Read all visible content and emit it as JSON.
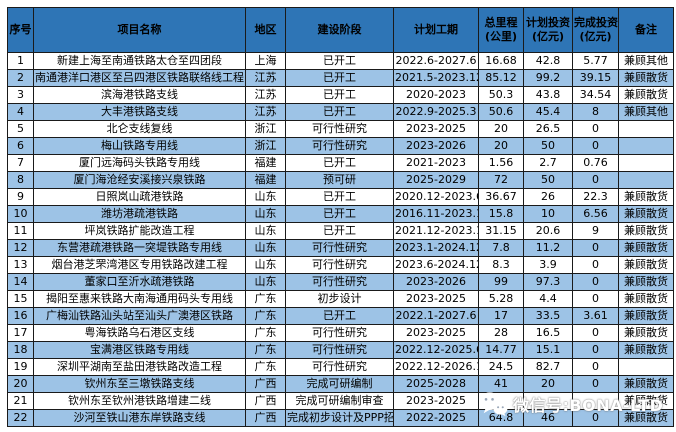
{
  "table": {
    "columns": [
      {
        "label": "序号"
      },
      {
        "label": "项目名称"
      },
      {
        "label": "地区"
      },
      {
        "label": "建设阶段"
      },
      {
        "label": "计划工期"
      },
      {
        "label": "总里程",
        "label2": "(公里)"
      },
      {
        "label": "计划投资",
        "label2": "(亿元)"
      },
      {
        "label": "完成投资",
        "label2": "(亿元)"
      },
      {
        "label": "备注"
      }
    ],
    "rows": [
      [
        "1",
        "新建上海至南通铁路太仓至四团段",
        "上海",
        "已开工",
        "2022.6-2027.6",
        "16.68",
        "42.8",
        "5.77",
        "兼顾其他"
      ],
      [
        "2",
        "南通港洋口港区至吕四港区铁路联络线工程",
        "江苏",
        "已开工",
        "2021.5-2023.12",
        "85.12",
        "99.2",
        "39.15",
        "兼顾散货"
      ],
      [
        "3",
        "滨海港铁路支线",
        "江苏",
        "已开工",
        "2020-2023",
        "50.3",
        "43.8",
        "34.54",
        "兼顾散货"
      ],
      [
        "4",
        "大丰港铁路支线",
        "江苏",
        "已开工",
        "2022.9-2025.3",
        "50.6",
        "45.4",
        "8",
        "兼顾其他"
      ],
      [
        "5",
        "北仑支线复线",
        "浙江",
        "可行性研究",
        "2023-2025",
        "20",
        "26.5",
        "0",
        ""
      ],
      [
        "6",
        "梅山铁路专用线",
        "浙江",
        "可行性研究",
        "2023-2026",
        "20",
        "50",
        "0",
        ""
      ],
      [
        "7",
        "厦门远海码头铁路专用线",
        "福建",
        "已开工",
        "2021-2023",
        "1.56",
        "2.7",
        "0.76",
        ""
      ],
      [
        "8",
        "厦门海沧经安溪接兴泉铁路",
        "福建",
        "预可研",
        "2025-2029",
        "72",
        "50",
        "0",
        ""
      ],
      [
        "9",
        "日照岚山疏港铁路",
        "山东",
        "已开工",
        "2020.12-2023.6",
        "36.67",
        "26",
        "22.3",
        "兼顾散货"
      ],
      [
        "10",
        "潍坊港疏港铁路",
        "山东",
        "已开工",
        "2016.11-2023.12",
        "15.8",
        "10",
        "6.56",
        "兼顾散货"
      ],
      [
        "11",
        "坪岚铁路扩能改造工程",
        "山东",
        "已开工",
        "2021.12-2023.12",
        "31.15",
        "20.6",
        "9",
        "兼顾散货"
      ],
      [
        "12",
        "东营港疏港铁路一突堤铁路专用线",
        "山东",
        "可行性研究",
        "2023.1-2024.12",
        "7.8",
        "11.2",
        "0",
        "兼顾散货"
      ],
      [
        "13",
        "烟台港芝罘湾港区专用铁路改建工程",
        "山东",
        "可行性研究",
        "2023.6-2024.12",
        "8.3",
        "3.9",
        "0",
        "兼顾散货"
      ],
      [
        "14",
        "董家口至沂水疏港铁路",
        "山东",
        "可行性研究",
        "2023-2026",
        "99",
        "97.3",
        "0",
        "兼顾散货"
      ],
      [
        "15",
        "揭阳至惠来铁路大南海通用码头专用线",
        "广东",
        "初步设计",
        "2023-2025",
        "5.28",
        "4.4",
        "0",
        "兼顾散货"
      ],
      [
        "16",
        "广梅汕铁路汕头站至汕头广澳港区铁路",
        "广东",
        "已开工",
        "2022.1-2027.6",
        "17",
        "33.5",
        "3.61",
        "兼顾散货"
      ],
      [
        "17",
        "粤海铁路乌石港区支线",
        "广东",
        "可行性研究",
        "2023-2025",
        "28",
        "16.5",
        "0",
        "兼顾散货"
      ],
      [
        "18",
        "宝满港区铁路专用线",
        "广东",
        "可行性研究",
        "2022.12-2025.6",
        "14.77",
        "15.1",
        "0",
        "兼顾散货"
      ],
      [
        "19",
        "深圳平湖南至盐田港铁路改造工程",
        "广东",
        "可行性研究",
        "2022.12-2026.12",
        "24.5",
        "82.7",
        "0",
        ""
      ],
      [
        "20",
        "钦州东至三墩铁路支线",
        "广西",
        "完成可研编制",
        "2025-2028",
        "41",
        "20",
        "0",
        "兼顾散货"
      ],
      [
        "21",
        "钦州东至钦州港铁路增建二线",
        "广西",
        "完成可研编制审查",
        "2023-2025",
        "",
        "",
        "",
        "兼顾散货"
      ],
      [
        "22",
        "沙河至铁山港东岸铁路支线",
        "广西",
        "完成初步设计及PPP招标",
        "2022-2025",
        "64.8",
        "46",
        "0",
        "兼顾散货"
      ]
    ]
  },
  "watermark": {
    "label": "微信号:BONA-LTD",
    "icon": "wechat-icon"
  },
  "colors": {
    "header_bg": "#2E75B6",
    "row_alt_bg": "#9DC3E6",
    "row_bg": "#FFFFFF",
    "border": "#1A1A1A",
    "watermark_text": "#FFFFFF"
  }
}
